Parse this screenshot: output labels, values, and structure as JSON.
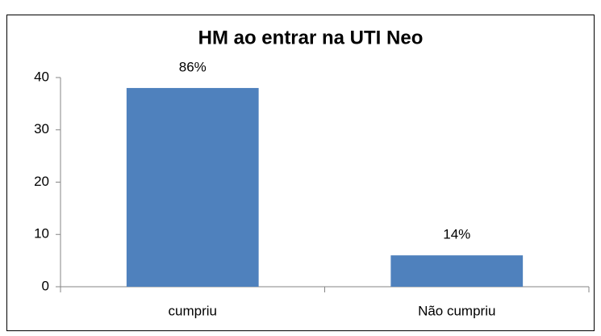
{
  "chart_data": {
    "type": "bar",
    "title": "HM ao entrar na UTI Neo",
    "categories": [
      "cumpriu",
      "Não cumpriu"
    ],
    "values": [
      38,
      6
    ],
    "annotations": [
      "86%",
      "14%"
    ],
    "color": "#4f81bd",
    "ylim": [
      0,
      40
    ],
    "yticks": [
      0,
      10,
      20,
      30,
      40
    ],
    "grid": false
  }
}
